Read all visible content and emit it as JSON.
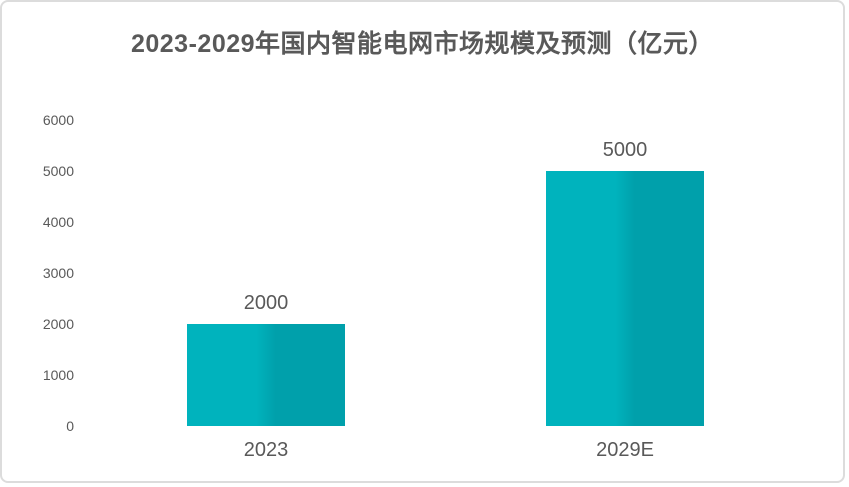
{
  "title": "2023-2029年国内智能电网市场规模及预测（亿元）",
  "colors": {
    "bar_left_half": "#00B3BD",
    "bar_right_half": "#00A0AB",
    "text": "#595959",
    "card_border": "#DCDCDC",
    "background": "#FFFFFF"
  },
  "chart_data": {
    "type": "bar",
    "title": "2023-2029年国内智能电网市场规模及预测（亿元）",
    "unit": "亿元",
    "categories": [
      "2023",
      "2029E"
    ],
    "values": [
      2000,
      5000
    ],
    "data_labels": [
      "2000",
      "5000"
    ],
    "yticks": [
      0,
      1000,
      2000,
      3000,
      4000,
      5000,
      6000
    ],
    "ytick_labels": [
      "0",
      "1000",
      "2000",
      "3000",
      "4000",
      "5000",
      "6000"
    ],
    "ylim": [
      0,
      6000
    ],
    "xlabel": "",
    "ylabel": "",
    "grid": false,
    "axis_lines": false,
    "legend": "none"
  }
}
